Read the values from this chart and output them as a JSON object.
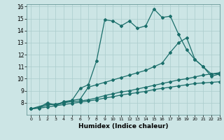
{
  "title": "",
  "xlabel": "Humidex (Indice chaleur)",
  "xlim": [
    -0.5,
    23
  ],
  "ylim": [
    7,
    16.2
  ],
  "yticks": [
    8,
    9,
    10,
    11,
    12,
    13,
    14,
    15,
    16
  ],
  "xticks": [
    0,
    1,
    2,
    3,
    4,
    5,
    6,
    7,
    8,
    9,
    10,
    11,
    12,
    13,
    14,
    15,
    16,
    17,
    18,
    19,
    20,
    21,
    22,
    23
  ],
  "background_color": "#cce5e5",
  "grid_color": "#aacccc",
  "line_color": "#1a6e6a",
  "line1_x": [
    0,
    1,
    2,
    3,
    4,
    5,
    6,
    7,
    8,
    9,
    10,
    11,
    12,
    13,
    14,
    15,
    16,
    17,
    18,
    19,
    20,
    21,
    22,
    23
  ],
  "line1_y": [
    7.5,
    7.6,
    8.0,
    7.8,
    8.1,
    8.2,
    9.2,
    9.5,
    11.5,
    14.9,
    14.8,
    14.4,
    14.8,
    14.2,
    14.4,
    15.8,
    15.1,
    15.2,
    13.7,
    12.4,
    11.6,
    11.0,
    10.2,
    10.4
  ],
  "line2_x": [
    0,
    2,
    3,
    4,
    5,
    6,
    7,
    8,
    9,
    10,
    11,
    12,
    13,
    14,
    15,
    16,
    17,
    18,
    19,
    20,
    21,
    22,
    23
  ],
  "line2_y": [
    7.5,
    7.9,
    7.8,
    8.0,
    8.2,
    8.3,
    9.3,
    9.5,
    9.7,
    9.9,
    10.1,
    10.3,
    10.5,
    10.7,
    11.0,
    11.3,
    12.2,
    13.0,
    13.4,
    11.6,
    11.0,
    10.4,
    10.4
  ],
  "line3_x": [
    0,
    1,
    2,
    3,
    4,
    5,
    6,
    7,
    8,
    9,
    10,
    11,
    12,
    13,
    14,
    15,
    16,
    17,
    18,
    19,
    20,
    21,
    22,
    23
  ],
  "line3_y": [
    7.5,
    7.6,
    7.8,
    7.9,
    8.0,
    8.1,
    8.15,
    8.25,
    8.4,
    8.6,
    8.75,
    8.9,
    9.0,
    9.15,
    9.3,
    9.45,
    9.6,
    9.75,
    9.9,
    10.0,
    10.15,
    10.3,
    10.4,
    10.5
  ],
  "line4_x": [
    0,
    1,
    2,
    3,
    4,
    5,
    6,
    7,
    8,
    9,
    10,
    11,
    12,
    13,
    14,
    15,
    16,
    17,
    18,
    19,
    20,
    21,
    22,
    23
  ],
  "line4_y": [
    7.5,
    7.55,
    7.65,
    7.75,
    7.85,
    7.95,
    8.05,
    8.15,
    8.25,
    8.4,
    8.5,
    8.65,
    8.75,
    8.85,
    8.95,
    9.1,
    9.2,
    9.3,
    9.4,
    9.5,
    9.6,
    9.65,
    9.7,
    9.75
  ]
}
